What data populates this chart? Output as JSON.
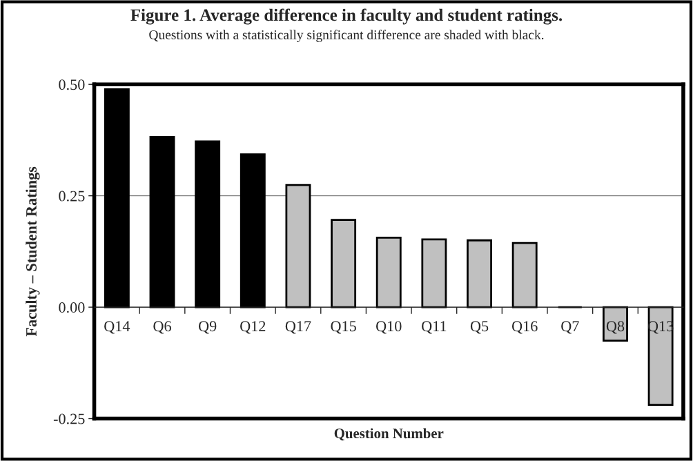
{
  "chart_data": {
    "type": "bar",
    "title": "Figure 1. Average difference in faculty and student ratings.",
    "subtitle": "Questions with a statistically significant difference are shaded with black.",
    "xlabel": "Question Number",
    "ylabel": "Faculty – Student Ratings",
    "categories": [
      "Q14",
      "Q6",
      "Q9",
      "Q12",
      "Q17",
      "Q15",
      "Q10",
      "Q11",
      "Q5",
      "Q16",
      "Q7",
      "Q8",
      "Q13"
    ],
    "values": [
      0.489,
      0.382,
      0.372,
      0.343,
      0.274,
      0.196,
      0.156,
      0.152,
      0.15,
      0.144,
      0.0,
      -0.075,
      -0.219
    ],
    "colors": [
      "#000000",
      "#000000",
      "#000000",
      "#000000",
      "#c0c0c0",
      "#c0c0c0",
      "#c0c0c0",
      "#c0c0c0",
      "#c0c0c0",
      "#c0c0c0",
      "#000000",
      "#c0c0c0",
      "#c0c0c0"
    ],
    "ylim": [
      -0.25,
      0.5
    ],
    "yticks": [
      {
        "value": -0.25,
        "label": "-0.25"
      },
      {
        "value": 0,
        "label": "0.00"
      },
      {
        "value": 0.25,
        "label": "0.25"
      },
      {
        "value": 0.5,
        "label": "0.50"
      }
    ],
    "grid": "y",
    "legend": false
  }
}
